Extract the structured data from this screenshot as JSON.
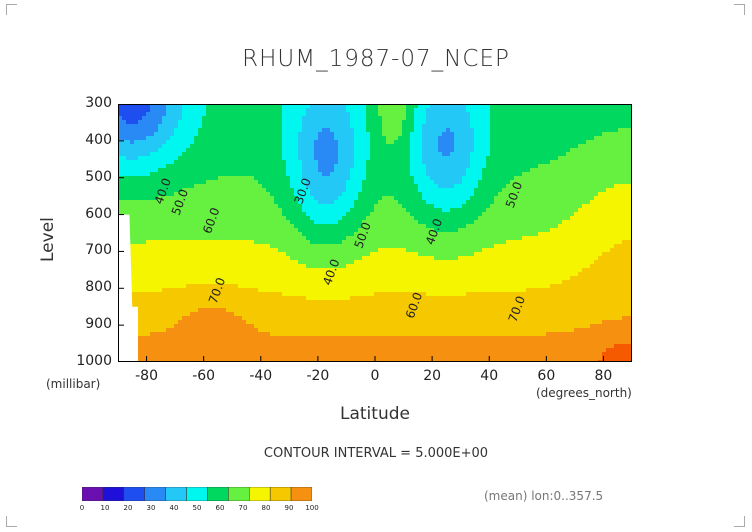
{
  "chart_data": {
    "type": "contour",
    "title": "RHUM_1987-07_NCEP",
    "xlabel": "Latitude",
    "x_unit": "(degrees_north)",
    "ylabel": "Level",
    "y_unit": "(millibar)",
    "xlim": [
      -90,
      90
    ],
    "ylim": [
      1000,
      300
    ],
    "x_ticks": [
      "-80",
      "-60",
      "-40",
      "-20",
      "0",
      "20",
      "40",
      "60",
      "80"
    ],
    "y_ticks": [
      "300",
      "400",
      "500",
      "600",
      "700",
      "800",
      "900",
      "1000"
    ],
    "x_tick_values": [
      -80,
      -60,
      -40,
      -20,
      0,
      20,
      40,
      60,
      80
    ],
    "y_tick_values": [
      300,
      400,
      500,
      600,
      700,
      800,
      900,
      1000
    ],
    "contour_labels": [
      {
        "text": "40.0",
        "lat": -73,
        "lev": 540
      },
      {
        "text": "50.0",
        "lat": -67,
        "lev": 570
      },
      {
        "text": "60.0",
        "lat": -56,
        "lev": 620
      },
      {
        "text": "70.0",
        "lat": -54,
        "lev": 810
      },
      {
        "text": "30.0",
        "lat": -24,
        "lev": 540
      },
      {
        "text": "40.0",
        "lat": -14,
        "lev": 760
      },
      {
        "text": "50.0",
        "lat": -3,
        "lev": 660
      },
      {
        "text": "40.0",
        "lat": 22,
        "lev": 650
      },
      {
        "text": "60.0",
        "lat": 15,
        "lev": 850
      },
      {
        "text": "50.0",
        "lat": 50,
        "lev": 550
      },
      {
        "text": "70.0",
        "lat": 51,
        "lev": 860
      }
    ],
    "colorbar": {
      "levels": [
        0,
        10,
        20,
        30,
        40,
        50,
        60,
        70,
        80,
        90,
        100
      ],
      "labels": [
        "0",
        "10",
        "20",
        "30",
        "40",
        "50",
        "60",
        "70",
        "80",
        "90",
        "100"
      ],
      "colors": [
        "#6a0fb0",
        "#1e10d8",
        "#1f4ef0",
        "#2a8af5",
        "#23c8f7",
        "#00f7f0",
        "#00d860",
        "#66f040",
        "#f5f500",
        "#f5c800",
        "#f59010",
        "#f55a00",
        "#f51000"
      ]
    },
    "contour_interval_text": "CONTOUR INTERVAL = 5.000E+00",
    "mean_note": "(mean) lon:0..357.5"
  }
}
